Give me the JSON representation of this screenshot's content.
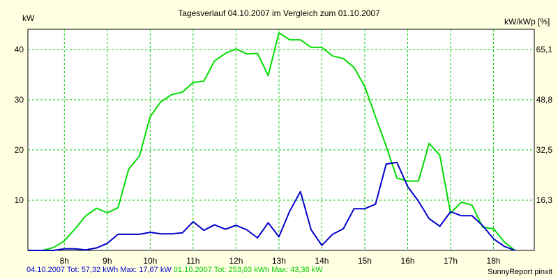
{
  "chart_data": {
    "type": "line",
    "title": "Tagesverlauf 04.10.2007 im Vergleich zum 01.10.2007",
    "ylabel_left": "kW",
    "ylabel_right": "kW/kWp [%]",
    "x_range": [
      7.15,
      18.95
    ],
    "ylim": [
      0,
      44
    ],
    "x_ticks": [
      {
        "x": 8,
        "label": "8h"
      },
      {
        "x": 9,
        "label": "9h"
      },
      {
        "x": 10,
        "label": "10h"
      },
      {
        "x": 11,
        "label": "11h"
      },
      {
        "x": 12,
        "label": "12h"
      },
      {
        "x": 13,
        "label": "13h"
      },
      {
        "x": 14,
        "label": "14h"
      },
      {
        "x": 15,
        "label": "15h"
      },
      {
        "x": 16,
        "label": "16h"
      },
      {
        "x": 17,
        "label": "17h"
      },
      {
        "x": 18,
        "label": "18h"
      }
    ],
    "y_ticks_left": [
      {
        "value": 10,
        "label": "10"
      },
      {
        "value": 20,
        "label": "20"
      },
      {
        "value": 30,
        "label": "30"
      },
      {
        "value": 40,
        "label": "40"
      }
    ],
    "y_ticks_right": [
      {
        "value": 10,
        "label": "16,3"
      },
      {
        "value": 20,
        "label": "32,5"
      },
      {
        "value": 30,
        "label": "48,8"
      },
      {
        "value": 40,
        "label": "65,1"
      }
    ],
    "grid": true,
    "series": [
      {
        "name": "04.10.2007",
        "color": "#0000cc",
        "x": [
          7.15,
          7.5,
          7.75,
          8.0,
          8.25,
          8.5,
          8.75,
          9.0,
          9.25,
          9.5,
          9.75,
          10.0,
          10.25,
          10.5,
          10.75,
          11.0,
          11.25,
          11.5,
          11.75,
          12.0,
          12.25,
          12.5,
          12.75,
          13.0,
          13.25,
          13.5,
          13.75,
          14.0,
          14.25,
          14.5,
          14.75,
          15.0,
          15.25,
          15.5,
          15.75,
          16.0,
          16.25,
          16.5,
          16.75,
          17.0,
          17.25,
          17.5,
          17.75,
          18.0,
          18.25,
          18.5
        ],
        "values": [
          0,
          0,
          0,
          0.3,
          0.3,
          0.1,
          0.5,
          1.4,
          3.2,
          3.2,
          3.2,
          3.6,
          3.3,
          3.3,
          3.5,
          5.7,
          4.0,
          5.1,
          4.2,
          5.0,
          4.1,
          2.5,
          5.5,
          2.7,
          7.8,
          11.7,
          4.1,
          1.0,
          3.2,
          4.3,
          8.3,
          8.3,
          9.2,
          17.2,
          17.5,
          12.7,
          9.8,
          6.3,
          4.8,
          7.7,
          6.9,
          6.9,
          4.9,
          2.3,
          0.8,
          0
        ]
      },
      {
        "name": "01.10.2007",
        "color": "#00dd00",
        "x": [
          7.15,
          7.5,
          7.75,
          8.0,
          8.25,
          8.5,
          8.75,
          9.0,
          9.25,
          9.5,
          9.75,
          10.0,
          10.25,
          10.5,
          10.75,
          11.0,
          11.25,
          11.5,
          11.75,
          12.0,
          12.25,
          12.5,
          12.75,
          13.0,
          13.25,
          13.5,
          13.75,
          14.0,
          14.25,
          14.5,
          14.75,
          15.0,
          15.25,
          15.5,
          15.75,
          16.0,
          16.25,
          16.5,
          16.75,
          17.0,
          17.25,
          17.5,
          17.75,
          18.0,
          18.25,
          18.5
        ],
        "values": [
          0,
          0,
          0.6,
          1.9,
          4.3,
          6.9,
          8.4,
          7.5,
          8.5,
          16.2,
          18.8,
          26.6,
          29.6,
          31.0,
          31.5,
          33.4,
          33.7,
          37.7,
          39.2,
          40.1,
          39.1,
          39.2,
          34.8,
          43.3,
          41.9,
          41.9,
          40.4,
          40.4,
          38.7,
          38.2,
          36.4,
          32.6,
          26.6,
          20.7,
          14.4,
          13.8,
          13.8,
          21.3,
          18.9,
          7.4,
          9.6,
          9.0,
          4.6,
          4.3,
          1.7,
          0
        ]
      }
    ]
  },
  "footer": {
    "s1_date": "04.10.2007",
    "s1_stats": "Tot: 57,32 kWh Max: 17,67 kW",
    "s2_date": "01.10.2007",
    "s2_stats": "Tot: 253,03 kWh Max: 43,38 kW",
    "credit": "SunnyReport pinxit"
  }
}
